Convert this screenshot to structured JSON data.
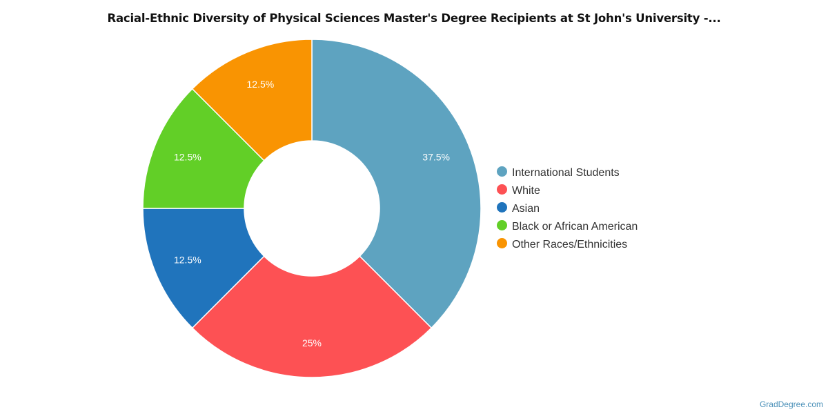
{
  "chart_data": {
    "type": "pie",
    "title": "Racial-Ethnic Diversity of Physical Sciences Master's Degree Recipients at St John's University -...",
    "donut": true,
    "legend_position": "right",
    "start_angle_deg": 0,
    "slices": [
      {
        "label": "International Students",
        "value": 37.5,
        "display": "37.5%",
        "color": "#5ea3c0"
      },
      {
        "label": "White",
        "value": 25,
        "display": "25%",
        "color": "#fd5154"
      },
      {
        "label": "Asian",
        "value": 12.5,
        "display": "12.5%",
        "color": "#2074bc"
      },
      {
        "label": "Black or African American",
        "value": 12.5,
        "display": "12.5%",
        "color": "#62cf27"
      },
      {
        "label": "Other Races/Ethnicities",
        "value": 12.5,
        "display": "12.5%",
        "color": "#f99402"
      }
    ]
  },
  "watermark": "GradDegree.com"
}
